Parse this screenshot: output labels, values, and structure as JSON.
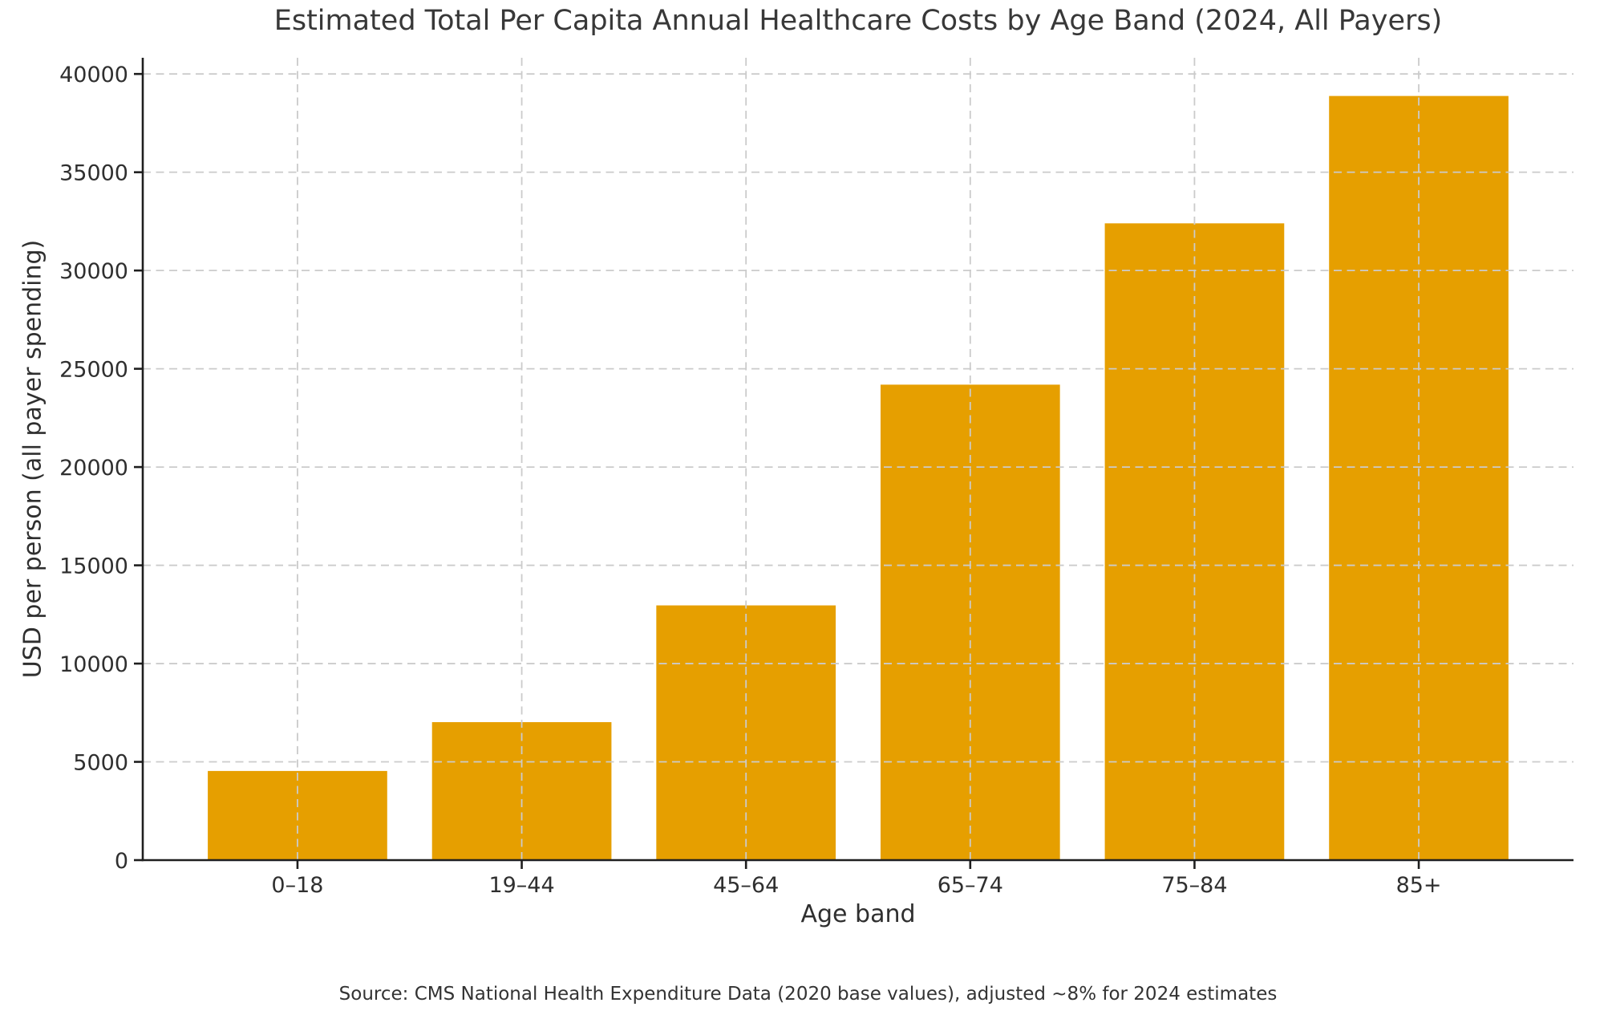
{
  "figure": {
    "title": "Estimated Total Per Capita Annual Healthcare Costs by Age Band (2024, All Payers)",
    "source_note": "Source: CMS National Health Expenditure Data (2020 base values), adjusted ~8% for 2024 estimates"
  },
  "chart_data": {
    "type": "bar",
    "title": "Estimated Total Per Capita Annual Healthcare Costs by Age Band (2024, All Payers)",
    "categories": [
      "0–18",
      "19–44",
      "45–64",
      "65–74",
      "75–84",
      "85+"
    ],
    "values": [
      4536,
      7020,
      12960,
      24192,
      32400,
      38880
    ],
    "xlabel": "Age band",
    "ylabel": "USD per person (all payer spending)",
    "yticks": [
      0,
      5000,
      10000,
      15000,
      20000,
      25000,
      30000,
      35000,
      40000
    ],
    "ylim": [
      0,
      40824
    ],
    "bar_color": "#E69F00",
    "grid": true,
    "grid_style": "dashed",
    "grid_color": "#cbcbcb",
    "grid_above_bars": true,
    "spine_color": "#1f1f1f",
    "legend": "none",
    "annotation": "Source: CMS National Health Expenditure Data (2020 base values), adjusted ~8% for 2024 estimates"
  }
}
